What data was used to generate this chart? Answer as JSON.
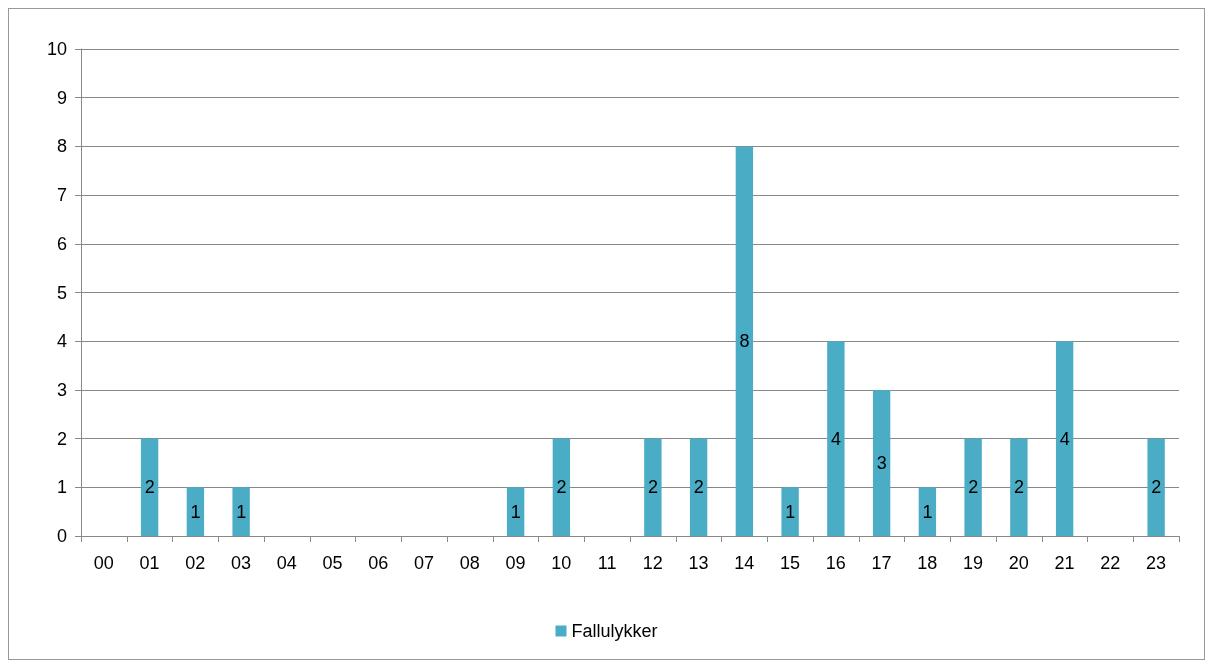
{
  "chart_data": {
    "type": "bar",
    "categories": [
      "00",
      "01",
      "02",
      "03",
      "04",
      "05",
      "06",
      "07",
      "08",
      "09",
      "10",
      "11",
      "12",
      "13",
      "14",
      "15",
      "16",
      "17",
      "18",
      "19",
      "20",
      "21",
      "22",
      "23"
    ],
    "series": [
      {
        "name": "Fallulykker",
        "color": "#4bacc6",
        "values": [
          0,
          2,
          1,
          1,
          0,
          0,
          0,
          0,
          0,
          1,
          2,
          0,
          2,
          2,
          8,
          1,
          4,
          3,
          1,
          2,
          2,
          4,
          0,
          2
        ],
        "value_labels": [
          null,
          "2",
          "1",
          "1",
          null,
          null,
          null,
          null,
          null,
          "1",
          "2",
          null,
          "2",
          "2",
          "8",
          "1",
          "4",
          "3",
          "1",
          "2",
          "2",
          "4",
          null,
          "2"
        ]
      }
    ],
    "ylim": [
      0,
      10
    ],
    "yticks": [
      0,
      1,
      2,
      3,
      4,
      5,
      6,
      7,
      8,
      9,
      10
    ],
    "grid": "y",
    "legend": "bottom"
  }
}
